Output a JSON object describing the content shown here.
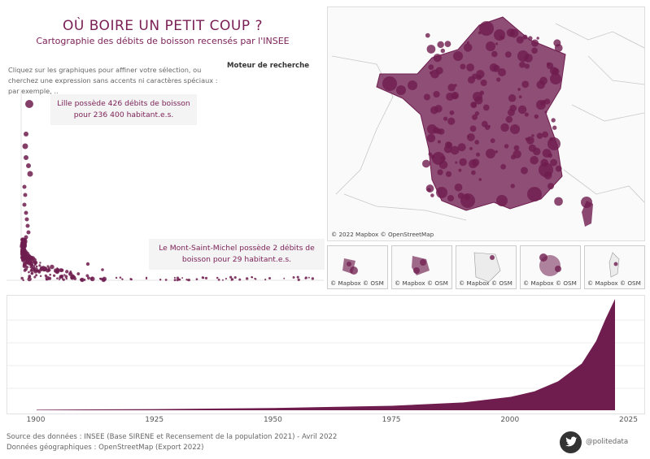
{
  "header": {
    "title": "OÙ BOIRE UN PETIT COUP ?",
    "subtitle": "Cartographie des débits de boisson recensés par l'INSEE",
    "hint": "Cliquez sur les graphiques pour affiner votre sélection, ou cherchez une expression sans accents ni caractères spéciaux : par exemple, ..",
    "search_label": "Moteur de recherche"
  },
  "scatter": {
    "tooltip_top": "Lille possède 426 débits de boisson pour 236 400 habitant.e.s.",
    "tooltip_bottom": "Le Mont-Saint-Michel possède 2 débits de boisson pour 29 habitant.e.s."
  },
  "map": {
    "attribution": "© 2022 Mapbox © OpenStreetMap",
    "mini_attribution": "© Mapbox © OSM",
    "mini_maps": 5
  },
  "colors": {
    "accent": "#7a1f55",
    "bubble": "#6f1d4f"
  },
  "timeline": {
    "ticks": [
      "1900",
      "1925",
      "1950",
      "1975",
      "2000",
      "2025"
    ]
  },
  "chart_data": {
    "type": "area",
    "x_range": [
      1900,
      2022
    ],
    "x": [
      1900,
      1925,
      1950,
      1975,
      1990,
      2000,
      2005,
      2010,
      2015,
      2018,
      2020,
      2022
    ],
    "values": [
      0.5,
      1,
      2,
      4,
      7,
      12,
      17,
      26,
      42,
      62,
      82,
      100
    ],
    "grid": true,
    "ylabel": ""
  },
  "footer": {
    "source": "Source des données : INSEE (Base SIRENE et Recensement de la population 2021) - Avril 2022",
    "geo": "Données géographiques : OpenStreetMap (Export 2022)",
    "handle": "@politedata"
  }
}
